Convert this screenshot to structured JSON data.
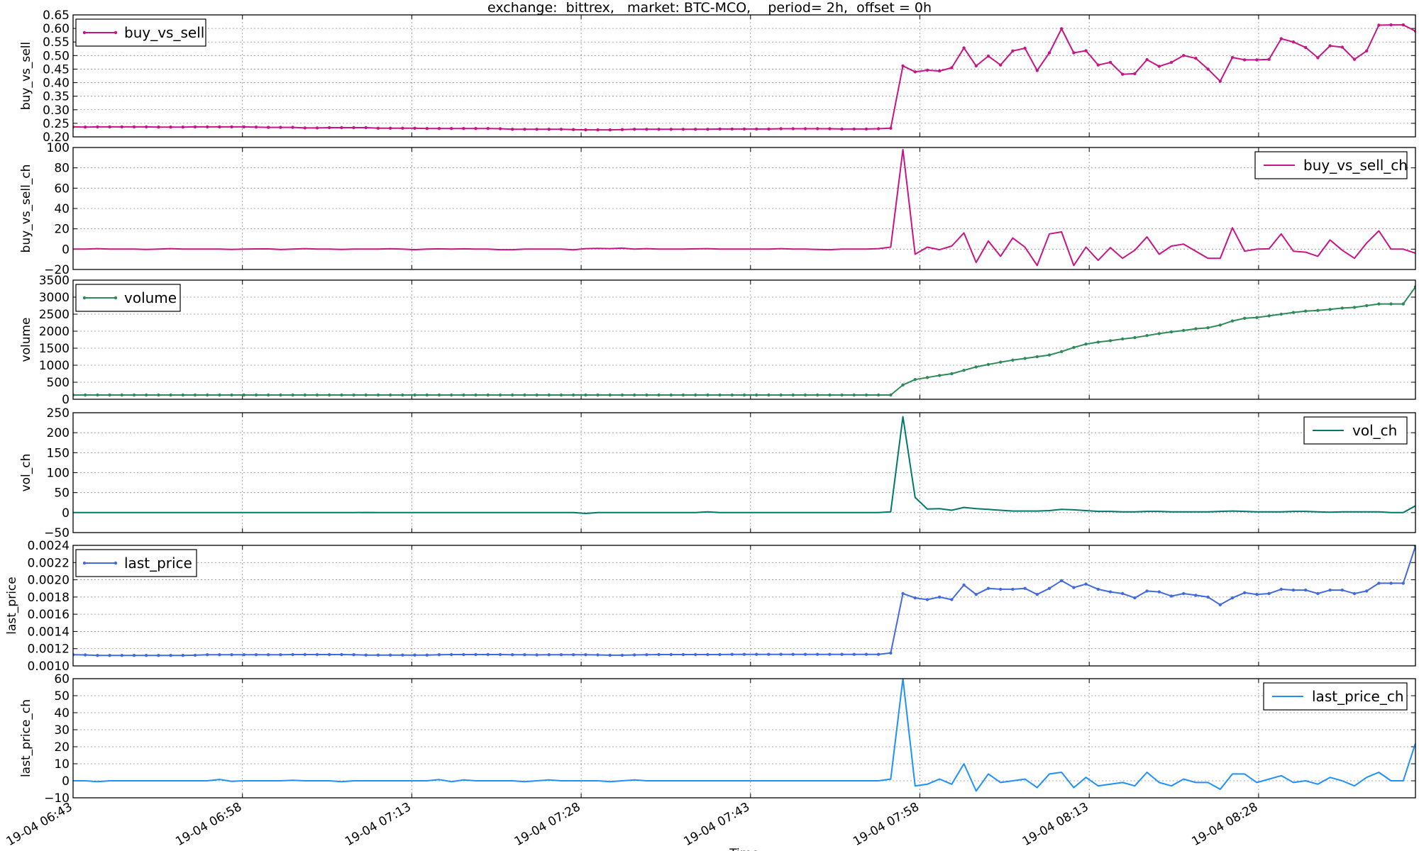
{
  "title": "exchange:  bittrex,   market: BTC-MCO,    period= 2h,  offset = 0h",
  "xlabel": "Time",
  "x_tick_labels": [
    "19-04 06:43",
    "19-04 06:58",
    "19-04 07:13",
    "19-04 07:28",
    "19-04 07:43",
    "19-04 07:58",
    "19-04 08:13",
    "19-04 08:28"
  ],
  "chart_data": [
    {
      "type": "line",
      "ylabel": "buy_vs_sell",
      "ylim": [
        0.2,
        0.65
      ],
      "yticks": [
        0.2,
        0.25,
        0.3,
        0.35,
        0.4,
        0.45,
        0.5,
        0.55,
        0.6,
        0.65
      ],
      "ytick_labels": [
        "0.20",
        "0.25",
        "0.30",
        "0.35",
        "0.40",
        "0.45",
        "0.50",
        "0.55",
        "0.60",
        "0.65"
      ],
      "grid": true,
      "legend": "top-left",
      "series": [
        {
          "name": "buy_vs_sell",
          "color": "#c71585",
          "markers": true,
          "values": [
            0.237,
            0.236,
            0.237,
            0.237,
            0.237,
            0.237,
            0.237,
            0.236,
            0.236,
            0.236,
            0.237,
            0.237,
            0.237,
            0.237,
            0.237,
            0.236,
            0.235,
            0.235,
            0.235,
            0.233,
            0.233,
            0.234,
            0.234,
            0.234,
            0.234,
            0.232,
            0.232,
            0.232,
            0.232,
            0.231,
            0.231,
            0.231,
            0.231,
            0.231,
            0.231,
            0.23,
            0.228,
            0.228,
            0.228,
            0.228,
            0.228,
            0.227,
            0.226,
            0.226,
            0.226,
            0.227,
            0.228,
            0.228,
            0.228,
            0.228,
            0.228,
            0.228,
            0.228,
            0.229,
            0.229,
            0.229,
            0.229,
            0.229,
            0.23,
            0.23,
            0.23,
            0.23,
            0.23,
            0.229,
            0.229,
            0.229,
            0.23,
            0.232,
            0.462,
            0.44,
            0.446,
            0.443,
            0.455,
            0.528,
            0.462,
            0.498,
            0.465,
            0.517,
            0.527,
            0.445,
            0.51,
            0.599,
            0.51,
            0.518,
            0.465,
            0.475,
            0.431,
            0.433,
            0.485,
            0.46,
            0.475,
            0.5,
            0.49,
            0.45,
            0.405,
            0.493,
            0.484,
            0.484,
            0.486,
            0.562,
            0.55,
            0.53,
            0.492,
            0.536,
            0.531,
            0.486,
            0.517,
            0.612,
            0.613,
            0.613,
            0.59
          ]
        }
      ]
    },
    {
      "type": "line",
      "ylabel": "buy_vs_sell_ch",
      "ylim": [
        -20,
        100
      ],
      "yticks": [
        -20,
        0,
        20,
        40,
        60,
        80,
        100
      ],
      "ytick_labels": [
        "−20",
        "0",
        "20",
        "40",
        "60",
        "80",
        "100"
      ],
      "grid": true,
      "legend": "top-right",
      "series": [
        {
          "name": "buy_vs_sell_ch",
          "color": "#c71585",
          "markers": false,
          "values": [
            0,
            0,
            0.5,
            0,
            0,
            0,
            -0.3,
            0,
            0.5,
            0,
            0,
            0,
            0,
            -0.3,
            0,
            0.2,
            0.3,
            -0.4,
            0,
            0.5,
            0,
            0,
            -0.3,
            0,
            0,
            0,
            0.4,
            0,
            -0.5,
            0,
            0.3,
            0,
            0.3,
            0,
            0,
            -0.5,
            -0.5,
            0,
            0,
            0,
            0,
            -0.6,
            0.5,
            0.8,
            0.5,
            1,
            0,
            0.5,
            0,
            0,
            0,
            0.3,
            0.5,
            0,
            0,
            0,
            0,
            0,
            0.5,
            0,
            0,
            -0.3,
            -0.5,
            0,
            0,
            0,
            0.5,
            2,
            98,
            -5,
            2,
            -0.5,
            3,
            16,
            -13,
            8,
            -7,
            11,
            2,
            -16,
            15,
            17,
            -16,
            2,
            -11,
            1.5,
            -9,
            -1,
            12,
            -5,
            3,
            5,
            -2,
            -9,
            -9,
            21,
            -2,
            0,
            0.3,
            15,
            -2,
            -3,
            -7,
            9,
            -1,
            -9,
            6,
            18,
            0,
            0,
            -4
          ]
        }
      ]
    },
    {
      "type": "line",
      "ylabel": "volume",
      "ylim": [
        0,
        3500
      ],
      "yticks": [
        0,
        500,
        1000,
        1500,
        2000,
        2500,
        3000,
        3500
      ],
      "ytick_labels": [
        "0",
        "500",
        "1000",
        "1500",
        "2000",
        "2500",
        "3000",
        "3500"
      ],
      "grid": true,
      "legend": "top-left",
      "series": [
        {
          "name": "volume",
          "color": "#2e8b57",
          "markers": true,
          "values": [
            125,
            125,
            125,
            125,
            125,
            125,
            125,
            125,
            125,
            125,
            125,
            125,
            125,
            125,
            125,
            125,
            125,
            125,
            125,
            125,
            125,
            125,
            125,
            125,
            125,
            125,
            125,
            125,
            125,
            125,
            125,
            125,
            125,
            125,
            125,
            125,
            125,
            125,
            125,
            125,
            125,
            125,
            125,
            125,
            125,
            125,
            125,
            125,
            125,
            125,
            125,
            125,
            125,
            125,
            125,
            125,
            125,
            125,
            125,
            125,
            125,
            125,
            125,
            125,
            125,
            125,
            125,
            125,
            420,
            580,
            640,
            700,
            750,
            850,
            950,
            1020,
            1090,
            1150,
            1200,
            1250,
            1300,
            1400,
            1520,
            1620,
            1680,
            1720,
            1770,
            1810,
            1870,
            1930,
            1980,
            2020,
            2070,
            2100,
            2180,
            2300,
            2380,
            2400,
            2450,
            2500,
            2550,
            2590,
            2610,
            2640,
            2680,
            2700,
            2750,
            2800,
            2800,
            2800,
            3300
          ]
        }
      ]
    },
    {
      "type": "line",
      "ylabel": "vol_ch",
      "ylim": [
        -50,
        250
      ],
      "yticks": [
        -50,
        0,
        50,
        100,
        150,
        200,
        250
      ],
      "ytick_labels": [
        "−50",
        "0",
        "50",
        "100",
        "150",
        "200",
        "250"
      ],
      "grid": true,
      "legend": "top-right",
      "series": [
        {
          "name": "vol_ch",
          "color": "#00796b",
          "markers": false,
          "values": [
            0,
            0,
            0,
            0,
            0,
            0,
            0,
            0,
            0,
            0,
            0,
            0,
            0,
            0,
            0,
            0,
            0,
            0,
            0,
            0,
            0,
            0,
            0,
            0,
            0.5,
            0,
            0,
            0,
            0,
            0,
            0,
            0,
            0,
            0,
            0,
            0,
            0,
            0,
            0,
            0,
            0,
            0,
            -2,
            0,
            0,
            0,
            0,
            0,
            0,
            0,
            0,
            0,
            2,
            0,
            0,
            0,
            0,
            0,
            0,
            0,
            0,
            0,
            0,
            0,
            0,
            0,
            0,
            2,
            240,
            38,
            9,
            10,
            6,
            13,
            10,
            8,
            6,
            4,
            4,
            4,
            5,
            8,
            7,
            5,
            3,
            3,
            2,
            2,
            3,
            3,
            2,
            2,
            2,
            2,
            3,
            4,
            3,
            2,
            2,
            2,
            3,
            3,
            2,
            1,
            2,
            2,
            2,
            2,
            0,
            0,
            17
          ]
        }
      ]
    },
    {
      "type": "line",
      "ylabel": "last_price",
      "ylim": [
        0.001,
        0.0024
      ],
      "yticks": [
        0.001,
        0.0012,
        0.0014,
        0.0016,
        0.0018,
        0.002,
        0.0022,
        0.0024
      ],
      "ytick_labels": [
        "0.0010",
        "0.0012",
        "0.0014",
        "0.0016",
        "0.0018",
        "0.0020",
        "0.0022",
        "0.0024"
      ],
      "grid": true,
      "legend": "top-left",
      "series": [
        {
          "name": "last_price",
          "color": "#4169e1",
          "markers": true,
          "values": [
            0.00113,
            0.001128,
            0.001122,
            0.001122,
            0.001122,
            0.001122,
            0.001122,
            0.001122,
            0.001122,
            0.001122,
            0.001124,
            0.00113,
            0.00113,
            0.00113,
            0.00113,
            0.00113,
            0.00113,
            0.00113,
            0.001132,
            0.001132,
            0.001132,
            0.001132,
            0.001132,
            0.00113,
            0.001126,
            0.001126,
            0.001126,
            0.001126,
            0.001126,
            0.001126,
            0.00113,
            0.001132,
            0.001132,
            0.001132,
            0.001132,
            0.001132,
            0.00113,
            0.00113,
            0.001128,
            0.00113,
            0.00113,
            0.00113,
            0.00113,
            0.001128,
            0.001124,
            0.001124,
            0.001128,
            0.00113,
            0.001132,
            0.001132,
            0.001132,
            0.001132,
            0.001132,
            0.001132,
            0.001134,
            0.001134,
            0.001134,
            0.001134,
            0.001134,
            0.001134,
            0.001134,
            0.001134,
            0.001134,
            0.001134,
            0.001134,
            0.001134,
            0.001134,
            0.00115,
            0.00184,
            0.00179,
            0.00177,
            0.0018,
            0.00177,
            0.00194,
            0.00183,
            0.0019,
            0.00189,
            0.00189,
            0.0019,
            0.00183,
            0.0019,
            0.00199,
            0.00191,
            0.00195,
            0.00189,
            0.00186,
            0.00184,
            0.00179,
            0.00187,
            0.00186,
            0.00181,
            0.00184,
            0.00182,
            0.0018,
            0.00171,
            0.00179,
            0.00185,
            0.00183,
            0.00184,
            0.00189,
            0.00188,
            0.00188,
            0.00184,
            0.00188,
            0.00188,
            0.00184,
            0.00187,
            0.00196,
            0.00196,
            0.00196,
            0.00239
          ]
        }
      ]
    },
    {
      "type": "line",
      "ylabel": "last_price_ch",
      "ylim": [
        -10,
        60
      ],
      "yticks": [
        -10,
        0,
        10,
        20,
        30,
        40,
        50,
        60
      ],
      "ytick_labels": [
        "−10",
        "0",
        "10",
        "20",
        "30",
        "40",
        "50",
        "60"
      ],
      "grid": true,
      "legend": "top-right",
      "series": [
        {
          "name": "last_price_ch",
          "color": "#1e90ff",
          "markers": false,
          "values": [
            0,
            0,
            -0.5,
            0,
            0,
            0,
            0,
            0,
            0,
            0,
            0,
            0,
            0.8,
            -0.3,
            0,
            0,
            0,
            0,
            0.3,
            0,
            0,
            0,
            -0.5,
            0,
            0,
            0,
            0,
            0,
            0,
            0,
            0.7,
            -0.5,
            0.5,
            0,
            0,
            0,
            0,
            -0.5,
            0,
            0.5,
            0,
            0,
            0,
            0,
            -0.5,
            0,
            0.5,
            0,
            0,
            0,
            0,
            0,
            0,
            0,
            0,
            0,
            0,
            0,
            0,
            0,
            0,
            0,
            0,
            0,
            0,
            0,
            0,
            1,
            60,
            -3,
            -2,
            1,
            -2,
            10,
            -6,
            4,
            -1,
            0,
            1,
            -4,
            4,
            5,
            -4,
            2,
            -3,
            -2,
            -1,
            -3,
            5,
            -1,
            -3,
            1,
            -1,
            -1,
            -5,
            4,
            4,
            -1,
            1,
            3,
            -1,
            0,
            -2,
            2,
            0,
            -3,
            2,
            5,
            0,
            0,
            22
          ]
        }
      ]
    }
  ]
}
